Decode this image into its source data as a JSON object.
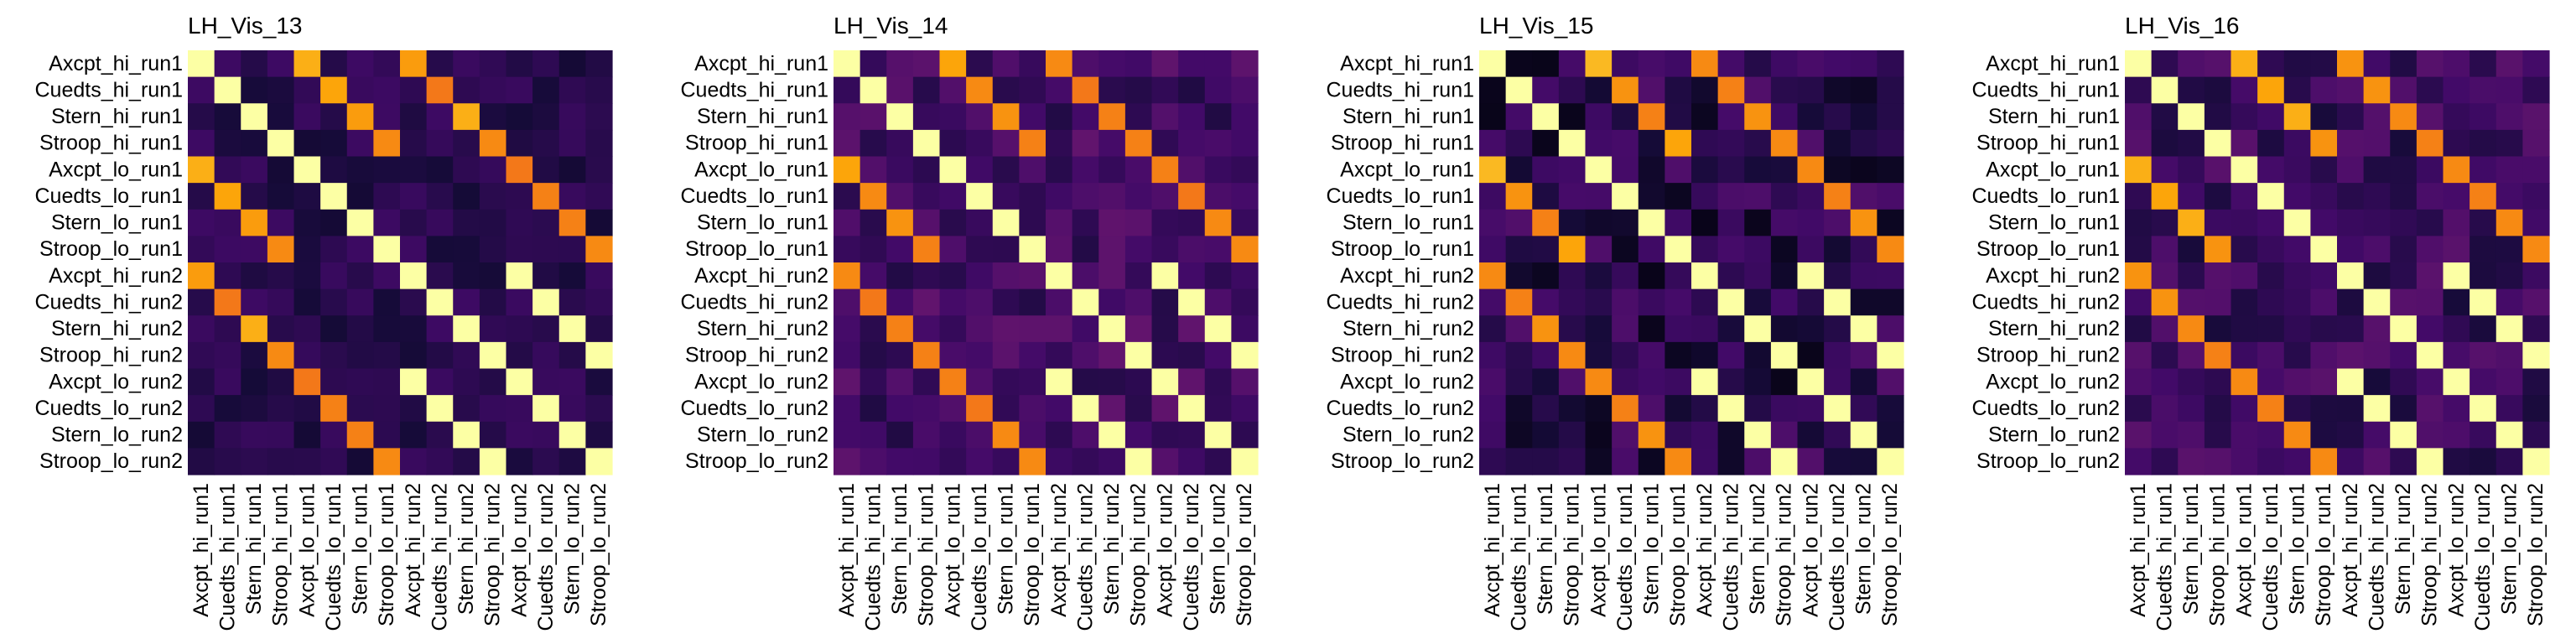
{
  "chart_data": {
    "type": "heatmap",
    "colormap": "inferno",
    "value_range": [
      0,
      1
    ],
    "labels": [
      "Axcpt_hi_run1",
      "Cuedts_hi_run1",
      "Stern_hi_run1",
      "Stroop_hi_run1",
      "Axcpt_lo_run1",
      "Cuedts_lo_run1",
      "Stern_lo_run1",
      "Stroop_lo_run1",
      "Axcpt_hi_run2",
      "Cuedts_hi_run2",
      "Stern_hi_run2",
      "Stroop_hi_run2",
      "Axcpt_lo_run2",
      "Cuedts_lo_run2",
      "Stern_lo_run2",
      "Stroop_lo_run2"
    ],
    "panels": [
      {
        "title": "LH_Vis_13",
        "base": 0.14,
        "jitter": 0.05,
        "seed": 13,
        "paired": [
          0.82,
          0.8,
          0.78,
          0.74,
          0.82,
          0.8,
          0.78,
          0.74
        ],
        "cross": [
          0.78,
          0.7,
          0.82,
          0.74,
          0.7,
          0.72,
          0.72,
          0.74
        ]
      },
      {
        "title": "LH_Vis_14",
        "base": 0.2,
        "jitter": 0.08,
        "seed": 14,
        "paired": [
          0.8,
          0.74,
          0.76,
          0.72,
          0.8,
          0.74,
          0.76,
          0.72
        ],
        "cross": [
          0.74,
          0.7,
          0.72,
          0.72,
          0.72,
          0.7,
          0.74,
          0.74
        ]
      },
      {
        "title": "LH_Vis_15",
        "base": 0.14,
        "jitter": 0.1,
        "seed": 15,
        "paired": [
          0.84,
          0.76,
          0.72,
          0.8,
          0.84,
          0.76,
          0.72,
          0.8
        ],
        "cross": [
          0.74,
          0.72,
          0.76,
          0.74,
          0.74,
          0.72,
          0.76,
          0.74
        ]
      },
      {
        "title": "LH_Vis_16",
        "base": 0.18,
        "jitter": 0.08,
        "seed": 16,
        "paired": [
          0.82,
          0.8,
          0.82,
          0.76,
          0.82,
          0.8,
          0.82,
          0.76
        ],
        "cross": [
          0.76,
          0.76,
          0.74,
          0.72,
          0.74,
          0.72,
          0.74,
          0.74
        ]
      }
    ]
  }
}
